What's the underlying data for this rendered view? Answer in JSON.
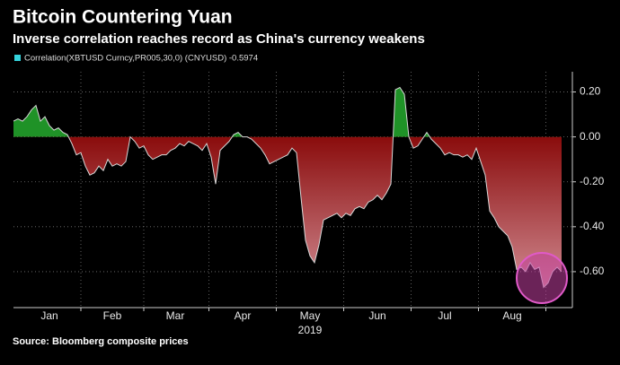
{
  "chart_data": {
    "type": "area",
    "title": "Bitcoin Countering Yuan",
    "subtitle": "Inverse correlation reaches record as China's currency weakens",
    "source": "Source: Bloomberg composite prices",
    "x_label": "2019",
    "categories": [
      null,
      null,
      null,
      null,
      null,
      null,
      null,
      null,
      "Jan",
      null,
      null,
      null,
      null,
      null,
      null,
      null,
      null,
      null,
      null,
      null,
      null,
      null,
      "Feb",
      null,
      null,
      null,
      null,
      null,
      null,
      null,
      null,
      null,
      null,
      null,
      null,
      null,
      "Mar",
      null,
      null,
      null,
      null,
      null,
      null,
      null,
      null,
      null,
      null,
      null,
      null,
      null,
      null,
      "Apr",
      null,
      null,
      null,
      null,
      null,
      null,
      null,
      null,
      null,
      null,
      null,
      null,
      null,
      null,
      "May",
      null,
      null,
      null,
      null,
      null,
      null,
      null,
      null,
      null,
      null,
      null,
      null,
      null,
      null,
      "Jun",
      null,
      null,
      null,
      null,
      null,
      null,
      null,
      null,
      null,
      null,
      null,
      null,
      null,
      null,
      "Jul",
      null,
      null,
      null,
      null,
      null,
      null,
      null,
      null,
      null,
      null,
      null,
      null,
      null,
      null,
      "Aug",
      null,
      null,
      null,
      null,
      null,
      null,
      null,
      null,
      null,
      null,
      null
    ],
    "series": [
      {
        "name": "Correlation(XBTUSD Curncy,PR005,30,0) (CNYUSD) -0.5974",
        "color": "#35d3dc",
        "values": [
          0.07,
          0.08,
          0.07,
          0.09,
          0.12,
          0.14,
          0.07,
          0.09,
          0.05,
          0.03,
          0.04,
          0.02,
          0.01,
          -0.03,
          -0.08,
          -0.07,
          -0.13,
          -0.17,
          -0.16,
          -0.13,
          -0.15,
          -0.1,
          -0.13,
          -0.12,
          -0.13,
          -0.11,
          0.0,
          -0.02,
          -0.05,
          -0.04,
          -0.08,
          -0.1,
          -0.09,
          -0.08,
          -0.08,
          -0.06,
          -0.05,
          -0.03,
          -0.04,
          -0.02,
          -0.03,
          -0.04,
          -0.06,
          -0.03,
          -0.09,
          -0.21,
          -0.06,
          -0.04,
          -0.02,
          0.01,
          0.02,
          0.0,
          0.0,
          -0.01,
          -0.03,
          -0.05,
          -0.08,
          -0.12,
          -0.11,
          -0.1,
          -0.09,
          -0.08,
          -0.05,
          -0.07,
          -0.27,
          -0.46,
          -0.53,
          -0.56,
          -0.48,
          -0.37,
          -0.36,
          -0.35,
          -0.34,
          -0.36,
          -0.34,
          -0.35,
          -0.32,
          -0.31,
          -0.32,
          -0.29,
          -0.28,
          -0.26,
          -0.28,
          -0.25,
          -0.21,
          0.21,
          0.22,
          0.19,
          0.0,
          -0.05,
          -0.04,
          -0.01,
          0.02,
          -0.01,
          -0.03,
          -0.05,
          -0.08,
          -0.07,
          -0.08,
          -0.08,
          -0.09,
          -0.08,
          -0.1,
          -0.05,
          -0.11,
          -0.17,
          -0.33,
          -0.36,
          -0.4,
          -0.42,
          -0.44,
          -0.49,
          -0.59,
          -0.58,
          -0.6,
          -0.56,
          -0.59,
          -0.58,
          -0.67,
          -0.65,
          -0.6,
          -0.58,
          -0.6
        ]
      }
    ],
    "fill_above": "#1f9227",
    "fill_below": "#8a0c0c",
    "ylim": [
      -0.76,
      0.29
    ],
    "yticks": [
      {
        "value": 0.2,
        "label": "0.20"
      },
      {
        "value": 0,
        "label": "0.00"
      },
      {
        "value": -0.2,
        "label": "-0.20"
      },
      {
        "value": -0.4,
        "label": "-0.40"
      },
      {
        "value": -0.6,
        "label": "-0.60"
      }
    ],
    "grid": true
  }
}
